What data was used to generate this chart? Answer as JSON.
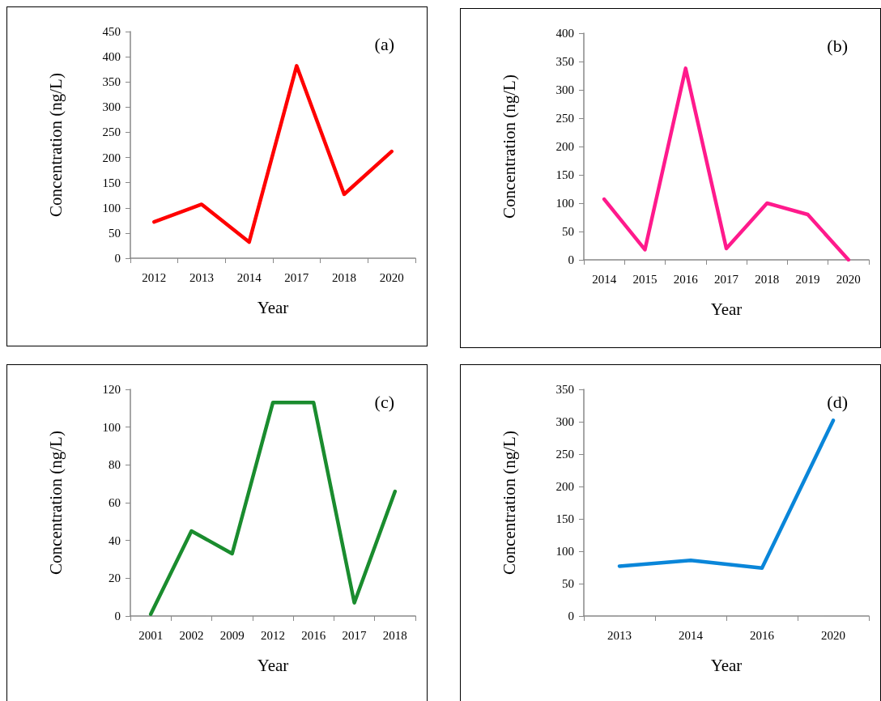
{
  "chart_data": [
    {
      "type": "line",
      "categories": [
        "2012",
        "2013",
        "2014",
        "2017",
        "2018",
        "2020"
      ],
      "xlabel": "Year",
      "ylabel": "Concentration (ng/L)",
      "annotations": [
        "(a)"
      ],
      "series": [
        {
          "color": "#ff0000",
          "values": [
            72,
            107,
            32,
            382,
            127,
            212
          ]
        }
      ],
      "ylim": [
        0,
        450
      ],
      "yticks": [
        0,
        50,
        100,
        150,
        200,
        250,
        300,
        350,
        400,
        450
      ],
      "grid": false,
      "marker": "none"
    },
    {
      "type": "line",
      "categories": [
        "2014",
        "2015",
        "2016",
        "2017",
        "2018",
        "2019",
        "2020"
      ],
      "xlabel": "Year",
      "ylabel": "Concentration (ng/L)",
      "annotations": [
        "(b)"
      ],
      "series": [
        {
          "color": "#ff1a8c",
          "values": [
            107,
            18,
            338,
            20,
            100,
            80,
            0
          ]
        }
      ],
      "ylim": [
        0,
        400
      ],
      "yticks": [
        0,
        50,
        100,
        150,
        200,
        250,
        300,
        350,
        400
      ],
      "grid": false,
      "marker": "none"
    },
    {
      "type": "line",
      "categories": [
        "2001",
        "2002",
        "2009",
        "2012",
        "2016",
        "2017",
        "2018"
      ],
      "xlabel": "Year",
      "ylabel": "Concentration (ng/L)",
      "annotations": [
        "(c)"
      ],
      "series": [
        {
          "color": "#1a8c2e",
          "values": [
            1,
            45,
            33,
            113,
            113,
            7,
            66
          ]
        }
      ],
      "ylim": [
        0,
        120
      ],
      "yticks": [
        0,
        20,
        40,
        60,
        80,
        100,
        120
      ],
      "grid": false,
      "marker": "none"
    },
    {
      "type": "line",
      "categories": [
        "2013",
        "2014",
        "2016",
        "2020"
      ],
      "xlabel": "Year",
      "ylabel": "Concentration (ng/L)",
      "annotations": [
        "(d)"
      ],
      "series": [
        {
          "color": "#0a86d9",
          "values": [
            77,
            86,
            74,
            302
          ]
        }
      ],
      "ylim": [
        0,
        350
      ],
      "yticks": [
        0,
        50,
        100,
        150,
        200,
        250,
        300,
        350
      ],
      "grid": false,
      "marker": "none"
    }
  ]
}
